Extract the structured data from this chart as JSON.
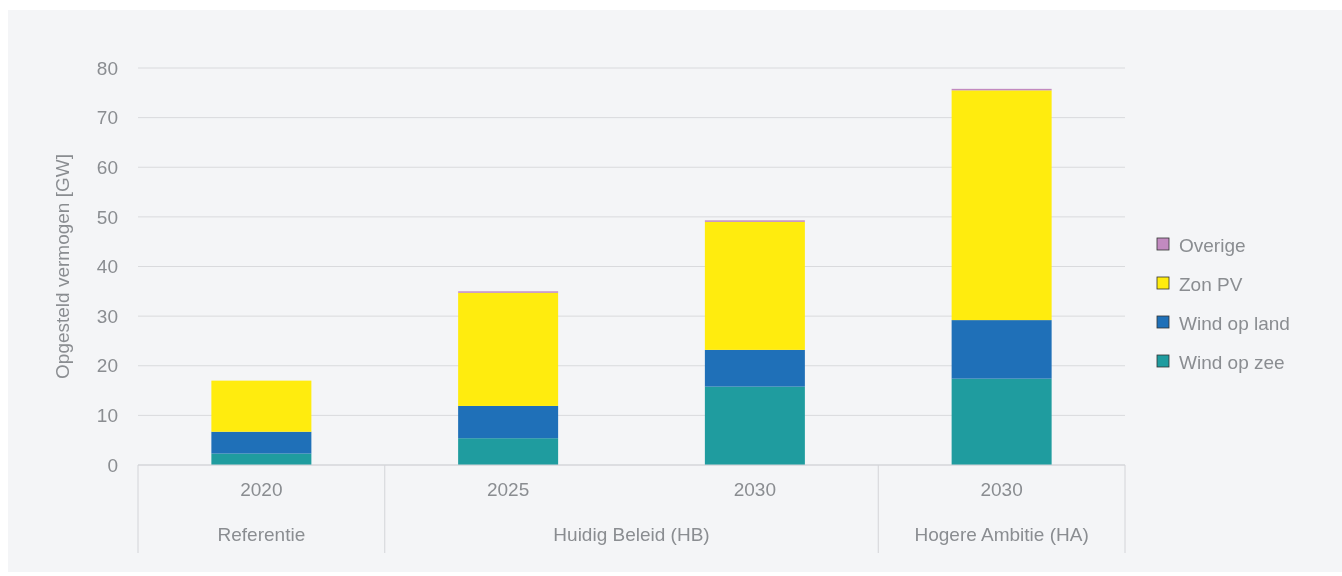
{
  "chart_data": {
    "type": "bar",
    "stacked": true,
    "ylabel": "Opgesteld vermogen [GW]",
    "categories": [
      "2020",
      "2025",
      "2030",
      "2030"
    ],
    "series": [
      {
        "name": "Wind op zee",
        "color": "#1f9c9f",
        "values": [
          2.3,
          5.4,
          15.8,
          17.4
        ]
      },
      {
        "name": "Wind op land",
        "color": "#1f70b8",
        "values": [
          4.4,
          6.5,
          7.4,
          11.8
        ]
      },
      {
        "name": "Zon PV",
        "color": "#ffec0e",
        "values": [
          10.3,
          22.8,
          25.8,
          46.3
        ]
      },
      {
        "name": "Overige",
        "color": "#c28ac0",
        "values": [
          0,
          0.3,
          0.3,
          0.3
        ]
      }
    ],
    "annotations": [
      "Referentie",
      "Huidig Beleid (HB)",
      "Hogere Ambitie (HA)"
    ],
    "ylim": [
      0,
      80
    ],
    "yticks": [
      0,
      10,
      20,
      30,
      40,
      50,
      60,
      70,
      80
    ],
    "grid": "y",
    "legend": "right"
  }
}
